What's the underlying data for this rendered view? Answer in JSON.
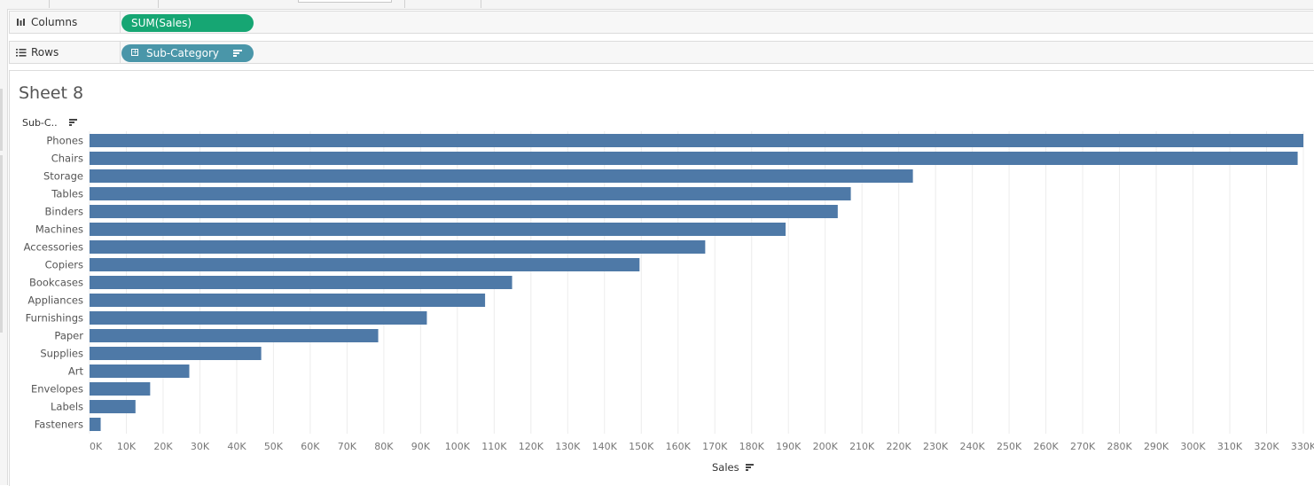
{
  "shelves": {
    "columns": {
      "label": "Columns",
      "icon": "columns-icon",
      "pill": "SUM(Sales)",
      "pill_color": "#16a673"
    },
    "rows": {
      "label": "Rows",
      "icon": "rows-icon",
      "pill": "Sub-Category",
      "pill_color": "#4a96a9"
    }
  },
  "sheet": {
    "title": "Sheet 8",
    "rows_header": "Sub-C.."
  },
  "chart_data": {
    "type": "bar",
    "orientation": "horizontal",
    "categories": [
      "Phones",
      "Chairs",
      "Storage",
      "Tables",
      "Binders",
      "Machines",
      "Accessories",
      "Copiers",
      "Bookcases",
      "Appliances",
      "Furnishings",
      "Paper",
      "Supplies",
      "Art",
      "Envelopes",
      "Labels",
      "Fasteners"
    ],
    "values": [
      330007,
      328449,
      223844,
      206966,
      203413,
      189239,
      167380,
      149528,
      114880,
      107532,
      91705,
      78479,
      46674,
      27119,
      16476,
      12486,
      3024
    ],
    "xlabel": "Sales",
    "xlim": [
      0,
      330000
    ],
    "xticks": [
      "0K",
      "10K",
      "20K",
      "30K",
      "40K",
      "50K",
      "60K",
      "70K",
      "80K",
      "90K",
      "100K",
      "110K",
      "120K",
      "130K",
      "140K",
      "150K",
      "160K",
      "170K",
      "180K",
      "190K",
      "200K",
      "210K",
      "220K",
      "230K",
      "240K",
      "250K",
      "260K",
      "270K",
      "280K",
      "290K",
      "300K",
      "310K",
      "320K",
      "330K"
    ],
    "bar_color": "#4e79a7",
    "grid": true
  }
}
